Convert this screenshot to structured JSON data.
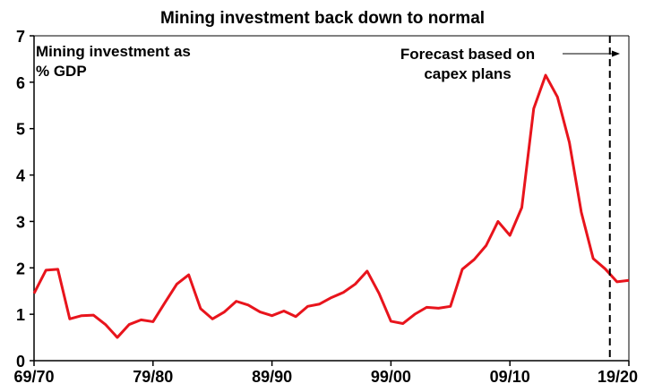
{
  "chart_data": {
    "type": "line",
    "title": "Mining investment back down to normal",
    "xlabel": "",
    "ylabel": "",
    "ylim": [
      0,
      7
    ],
    "yticks": [
      0,
      1,
      2,
      3,
      4,
      5,
      6,
      7
    ],
    "xtick_labels": [
      "69/70",
      "79/80",
      "89/90",
      "99/00",
      "09/10",
      "19/20"
    ],
    "grid": false,
    "series_color": "#e8141c",
    "annotations": {
      "series_label": [
        "Mining investment as",
        "% GDP"
      ],
      "forecast_label": [
        "Forecast based on",
        "capex plans"
      ]
    },
    "forecast_start": "17/18",
    "series": [
      {
        "x": [
          "69/70",
          "70/71",
          "71/72",
          "72/73",
          "73/74",
          "74/75",
          "75/76",
          "76/77",
          "77/78",
          "78/79",
          "79/80",
          "80/81",
          "81/82",
          "82/83",
          "83/84",
          "84/85",
          "85/86",
          "86/87",
          "87/88",
          "88/89",
          "89/90",
          "90/91",
          "91/92",
          "92/93",
          "93/94",
          "94/95",
          "95/96",
          "96/97",
          "97/98",
          "98/99",
          "99/00",
          "00/01",
          "01/02",
          "02/03",
          "03/04",
          "04/05",
          "05/06",
          "06/07",
          "07/08",
          "08/09",
          "09/10",
          "10/11",
          "11/12",
          "12/13",
          "13/14",
          "14/15",
          "15/16",
          "16/17",
          "17/18",
          "18/19",
          "19/20"
        ],
        "values": [
          1.45,
          1.95,
          1.97,
          0.9,
          0.97,
          0.98,
          0.78,
          0.5,
          0.78,
          0.88,
          0.84,
          1.25,
          1.65,
          1.85,
          1.12,
          0.9,
          1.05,
          1.28,
          1.2,
          1.05,
          0.97,
          1.07,
          0.95,
          1.17,
          1.22,
          1.36,
          1.47,
          1.65,
          1.93,
          1.45,
          0.85,
          0.8,
          1.0,
          1.15,
          1.13,
          1.17,
          1.97,
          2.18,
          2.48,
          3.0,
          2.7,
          3.3,
          5.43,
          6.15,
          5.68,
          4.7,
          3.2,
          2.2,
          1.98,
          1.7,
          1.73
        ]
      }
    ]
  }
}
